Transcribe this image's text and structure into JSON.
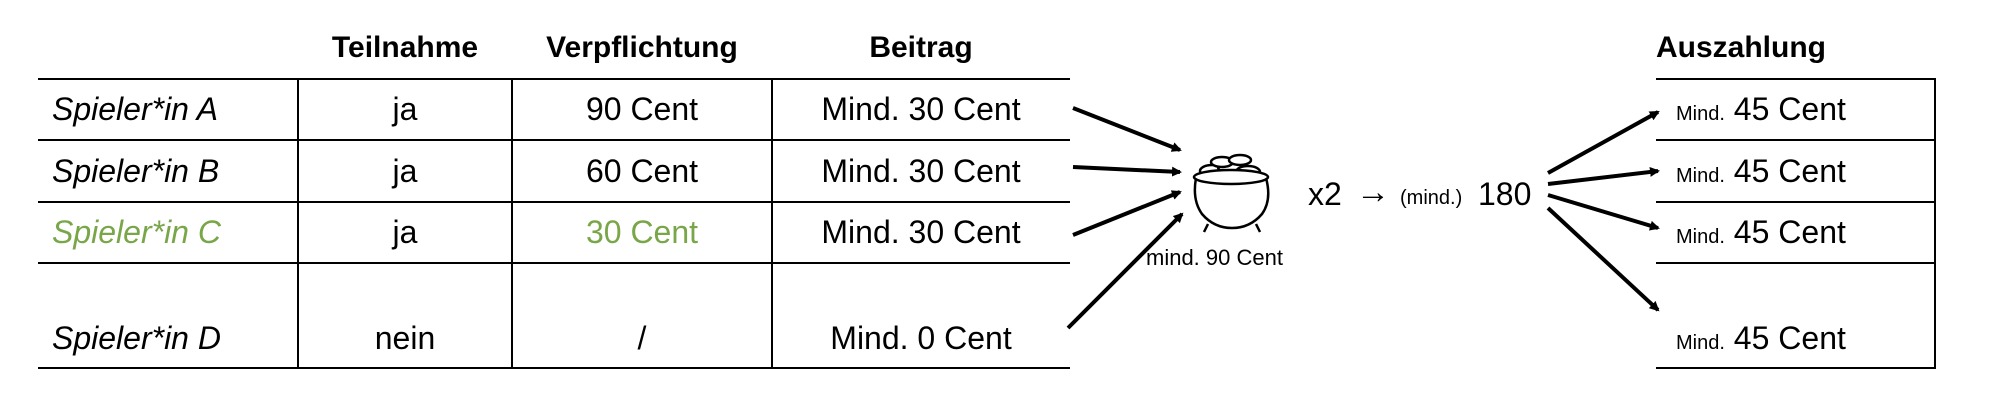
{
  "table": {
    "headers": {
      "participation": "Teilnahme",
      "obligation": "Verpflichtung",
      "contribution": "Beitrag"
    },
    "rows": [
      {
        "player": "Spieler*in A",
        "participation": "ja",
        "obligation": "90 Cent",
        "contribution": "Mind. 30 Cent"
      },
      {
        "player": "Spieler*in B",
        "participation": "ja",
        "obligation": "60 Cent",
        "contribution": "Mind. 30 Cent"
      },
      {
        "player": "Spieler*in C",
        "participation": "ja",
        "obligation": "30 Cent",
        "contribution": "Mind. 30 Cent"
      },
      {
        "player": "Spieler*in D",
        "participation": "nein",
        "obligation": "/",
        "contribution": "Mind. 0 Cent"
      }
    ]
  },
  "pot": {
    "icon": "pot-of-gold-icon",
    "label": "mind. 90 Cent"
  },
  "multiplier": {
    "factor": "x2",
    "arrow": "→",
    "prefix": "(mind.)",
    "value": "180"
  },
  "payout": {
    "header": "Auszahlung",
    "rows": [
      {
        "prefix": "Mind.",
        "amount": "45 Cent"
      },
      {
        "prefix": "Mind.",
        "amount": "45 Cent"
      },
      {
        "prefix": "Mind.",
        "amount": "45 Cent"
      },
      {
        "prefix": "Mind.",
        "amount": "45 Cent"
      }
    ]
  },
  "colors": {
    "highlight": "#7aa64a",
    "text": "#000000"
  }
}
